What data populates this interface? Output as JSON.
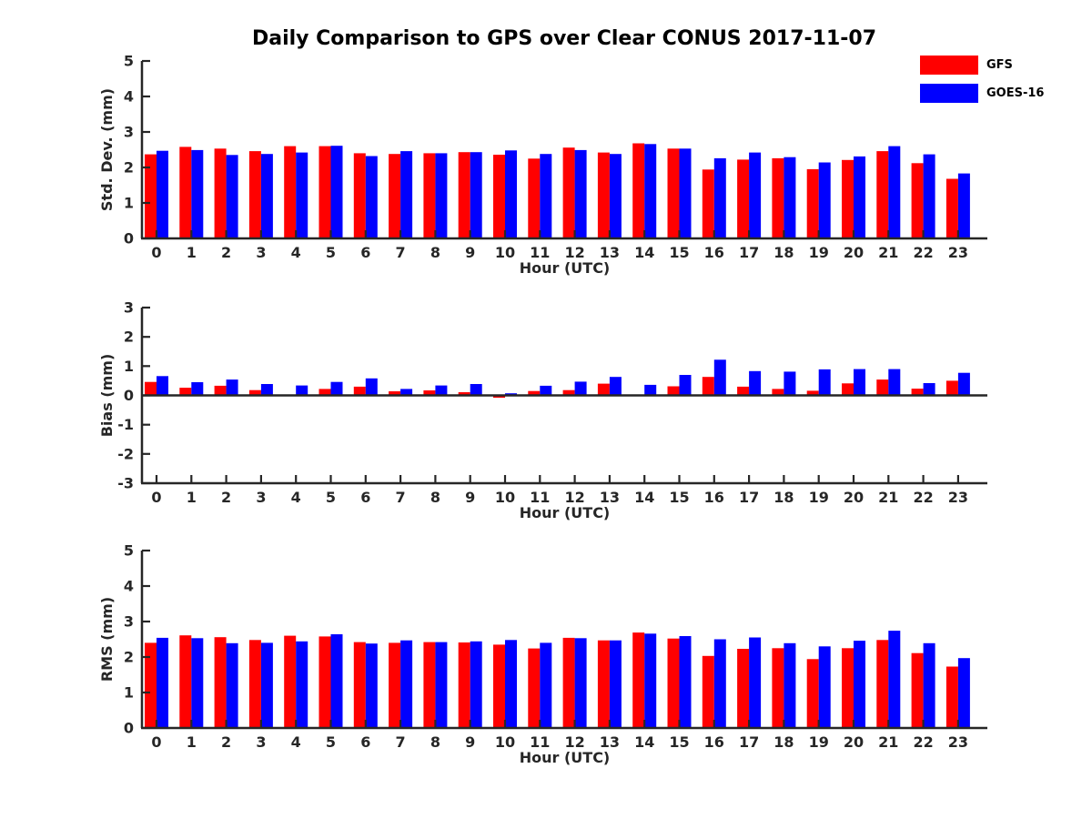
{
  "title": "Daily Comparison to GPS over Clear CONUS 2017-11-07",
  "legend": {
    "position": "top-right",
    "entries": [
      {
        "label": "GFS",
        "color": "#ff0000"
      },
      {
        "label": "GOES-16",
        "color": "#0000ff"
      }
    ]
  },
  "colors": {
    "gfs": "#ff0000",
    "goes16": "#0000ff",
    "axis": "#262626",
    "background": "#ffffff"
  },
  "chart_data": [
    {
      "type": "bar",
      "name": "std-dev",
      "title": "",
      "xlabel": "Hour (UTC)",
      "ylabel": "Std. Dev. (mm)",
      "ylim": [
        0,
        5
      ],
      "yticks": [
        0,
        1,
        2,
        3,
        4,
        5
      ],
      "grid": false,
      "categories": [
        "0",
        "1",
        "2",
        "3",
        "4",
        "5",
        "6",
        "7",
        "8",
        "9",
        "10",
        "11",
        "12",
        "13",
        "14",
        "15",
        "16",
        "17",
        "18",
        "19",
        "20",
        "21",
        "22",
        "23"
      ],
      "series": [
        {
          "name": "GFS",
          "color": "#ff0000",
          "values": [
            2.37,
            2.58,
            2.53,
            2.46,
            2.6,
            2.6,
            2.4,
            2.38,
            2.4,
            2.43,
            2.36,
            2.25,
            2.56,
            2.42,
            2.68,
            2.53,
            1.94,
            2.22,
            2.26,
            1.95,
            2.21,
            2.46,
            2.12,
            1.68
          ]
        },
        {
          "name": "GOES-16",
          "color": "#0000ff",
          "values": [
            2.47,
            2.49,
            2.35,
            2.38,
            2.42,
            2.61,
            2.32,
            2.46,
            2.4,
            2.43,
            2.48,
            2.38,
            2.49,
            2.38,
            2.66,
            2.53,
            2.26,
            2.42,
            2.29,
            2.14,
            2.31,
            2.6,
            2.37,
            1.83
          ]
        }
      ]
    },
    {
      "type": "bar",
      "name": "bias",
      "title": "",
      "xlabel": "Hour (UTC)",
      "ylabel": "Bias (mm)",
      "ylim": [
        -3,
        3
      ],
      "yticks": [
        3,
        2,
        1,
        0,
        -1,
        -2,
        -3
      ],
      "grid": false,
      "categories": [
        "0",
        "1",
        "2",
        "3",
        "4",
        "5",
        "6",
        "7",
        "8",
        "9",
        "10",
        "11",
        "12",
        "13",
        "14",
        "15",
        "16",
        "17",
        "18",
        "19",
        "20",
        "21",
        "22",
        "23"
      ],
      "series": [
        {
          "name": "GFS",
          "color": "#ff0000",
          "values": [
            0.46,
            0.26,
            0.33,
            0.18,
            0.02,
            0.22,
            0.3,
            0.14,
            0.17,
            0.11,
            -0.08,
            0.15,
            0.18,
            0.4,
            0.03,
            0.31,
            0.63,
            0.3,
            0.22,
            0.16,
            0.41,
            0.54,
            0.23,
            0.5
          ]
        },
        {
          "name": "GOES-16",
          "color": "#0000ff",
          "values": [
            0.66,
            0.45,
            0.54,
            0.39,
            0.34,
            0.46,
            0.58,
            0.22,
            0.34,
            0.39,
            0.07,
            0.33,
            0.47,
            0.63,
            0.36,
            0.7,
            1.22,
            0.83,
            0.81,
            0.89,
            0.9,
            0.9,
            0.42,
            0.77
          ]
        }
      ]
    },
    {
      "type": "bar",
      "name": "rms",
      "title": "",
      "xlabel": "Hour (UTC)",
      "ylabel": "RMS (mm)",
      "ylim": [
        0,
        5
      ],
      "yticks": [
        0,
        1,
        2,
        3,
        4,
        5
      ],
      "grid": false,
      "categories": [
        "0",
        "1",
        "2",
        "3",
        "4",
        "5",
        "6",
        "7",
        "8",
        "9",
        "10",
        "11",
        "12",
        "13",
        "14",
        "15",
        "16",
        "17",
        "18",
        "19",
        "20",
        "21",
        "22",
        "23"
      ],
      "series": [
        {
          "name": "GFS",
          "color": "#ff0000",
          "values": [
            2.4,
            2.61,
            2.56,
            2.48,
            2.6,
            2.58,
            2.42,
            2.4,
            2.42,
            2.41,
            2.35,
            2.24,
            2.54,
            2.47,
            2.69,
            2.52,
            2.03,
            2.23,
            2.25,
            1.94,
            2.25,
            2.48,
            2.11,
            1.73
          ]
        },
        {
          "name": "GOES-16",
          "color": "#0000ff",
          "values": [
            2.54,
            2.53,
            2.39,
            2.4,
            2.44,
            2.64,
            2.38,
            2.47,
            2.42,
            2.44,
            2.48,
            2.4,
            2.53,
            2.47,
            2.66,
            2.59,
            2.5,
            2.55,
            2.39,
            2.3,
            2.46,
            2.74,
            2.39,
            1.97
          ]
        }
      ]
    }
  ]
}
